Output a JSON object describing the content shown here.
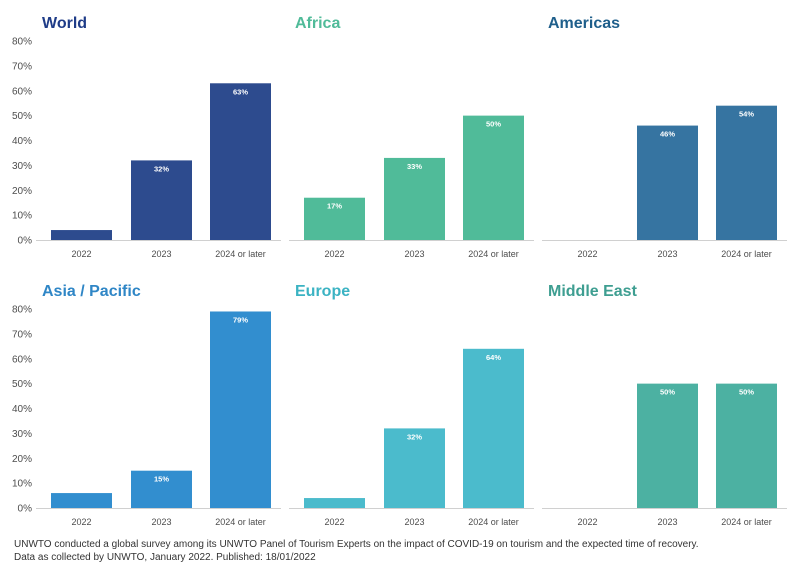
{
  "chart_data": [
    {
      "type": "bar",
      "title": "World",
      "color": "#2d4b8e",
      "categories": [
        "2022",
        "2023",
        "2024 or later"
      ],
      "values": [
        4,
        32,
        63
      ],
      "data_labels": [
        "",
        "32%",
        "63%"
      ],
      "ylim": [
        0,
        80
      ],
      "yticks": [
        "0%",
        "10%",
        "20%",
        "30%",
        "40%",
        "50%",
        "60%",
        "70%",
        "80%"
      ],
      "grid": false
    },
    {
      "type": "bar",
      "title": "Africa",
      "color": "#50bb99",
      "categories": [
        "2022",
        "2023",
        "2024 or later"
      ],
      "values": [
        17,
        33,
        50
      ],
      "data_labels": [
        "17%",
        "33%",
        "50%"
      ],
      "ylim": [
        0,
        80
      ],
      "grid": false
    },
    {
      "type": "bar",
      "title": "Americas",
      "color": "#3674a1",
      "categories": [
        "2022",
        "2023",
        "2024 or later"
      ],
      "values": [
        0,
        46,
        54
      ],
      "data_labels": [
        "",
        "46%",
        "54%"
      ],
      "ylim": [
        0,
        80
      ],
      "grid": false
    },
    {
      "type": "bar",
      "title": "Asia / Pacific",
      "color": "#328ecf",
      "categories": [
        "2022",
        "2023",
        "2024 or later"
      ],
      "values": [
        6,
        15,
        79
      ],
      "data_labels": [
        "",
        "15%",
        "79%"
      ],
      "ylim": [
        0,
        80
      ],
      "yticks": [
        "0%",
        "10%",
        "20%",
        "30%",
        "40%",
        "50%",
        "60%",
        "70%",
        "80%"
      ],
      "grid": false
    },
    {
      "type": "bar",
      "title": "Europe",
      "color": "#4bbbcc",
      "categories": [
        "2022",
        "2023",
        "2024 or later"
      ],
      "values": [
        4,
        32,
        64
      ],
      "data_labels": [
        "",
        "32%",
        "64%"
      ],
      "ylim": [
        0,
        80
      ],
      "grid": false
    },
    {
      "type": "bar",
      "title": "Middle East",
      "color": "#4cb1a2",
      "categories": [
        "2022",
        "2023",
        "2024 or later"
      ],
      "values": [
        0,
        50,
        50
      ],
      "data_labels": [
        "",
        "50%",
        "50%"
      ],
      "ylim": [
        0,
        80
      ],
      "grid": false
    }
  ],
  "title_colors": [
    "#1f3c88",
    "#50bb99",
    "#1f5f8b",
    "#2f86c6",
    "#3bb3c3",
    "#3e9e91"
  ],
  "footer": {
    "line1": "UNWTO conducted a global survey among its UNWTO Panel of Tourism Experts on the impact of COVID-19 on tourism and the expected time of recovery.",
    "line2": "Data as collected by UNWTO, January 2022. Published: 18/01/2022"
  }
}
